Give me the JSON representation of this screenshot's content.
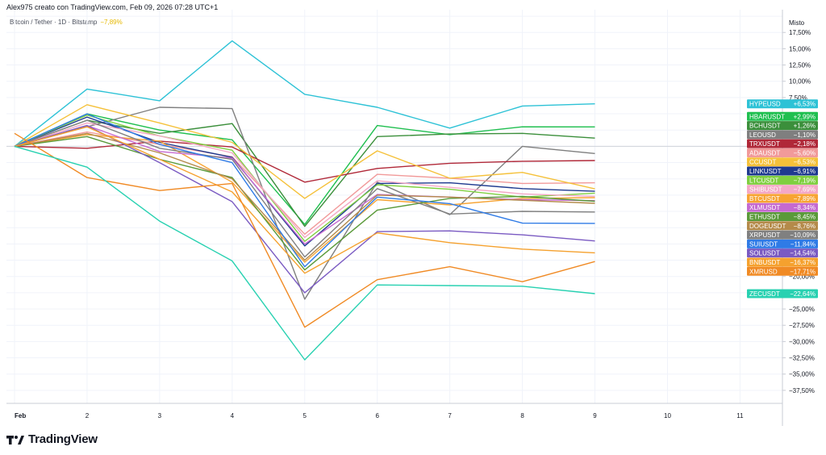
{
  "header": {
    "text": "Alex975 creato con TradingView.com, Feb 09, 2026 07:28 UTC+1"
  },
  "legend": {
    "symbol": "Bitcoin / Tether · 1D · Bitstamp",
    "change": "−7,89%"
  },
  "footer": {
    "brand": "TradingView"
  },
  "chart_data": {
    "type": "line",
    "title": "Bitcoin / Tether · 1D · Bitstamp",
    "scale_label": "Misto",
    "x": [
      1,
      2,
      3,
      4,
      5,
      6,
      7,
      8,
      9
    ],
    "xlim": [
      1,
      11.5
    ],
    "x_ticks": [
      {
        "x": 1,
        "label": "Feb"
      },
      {
        "x": 2,
        "label": "2"
      },
      {
        "x": 3,
        "label": "3"
      },
      {
        "x": 4,
        "label": "4"
      },
      {
        "x": 5,
        "label": "5"
      },
      {
        "x": 6,
        "label": "6"
      },
      {
        "x": 7,
        "label": "7"
      },
      {
        "x": 8,
        "label": "8"
      },
      {
        "x": 9,
        "label": "9"
      },
      {
        "x": 10,
        "label": "10"
      },
      {
        "x": 11,
        "label": "11"
      }
    ],
    "ylim": [
      -39.5,
      21
    ],
    "y_ticks": [
      {
        "v": 17.5,
        "label": "17,50%"
      },
      {
        "v": 15,
        "label": "15,00%"
      },
      {
        "v": 12.5,
        "label": "12,50%"
      },
      {
        "v": 10,
        "label": "10,00%"
      },
      {
        "v": 7.5,
        "label": "7,50%"
      },
      {
        "v": -20,
        "label": "−20,00%"
      },
      {
        "v": -25,
        "label": "−25,00%"
      },
      {
        "v": -27.5,
        "label": "−27,50%"
      },
      {
        "v": -30,
        "label": "−30,00%"
      },
      {
        "v": -32.5,
        "label": "−32,50%"
      },
      {
        "v": -35,
        "label": "−35,00%"
      },
      {
        "v": -37.5,
        "label": "−37,50%"
      }
    ],
    "series": [
      {
        "name": "HYPEUSD",
        "label": "+6,53%",
        "color": "#2dc2d6",
        "label_y": 6.53,
        "values": [
          0,
          8.8,
          7.0,
          16.2,
          8.0,
          6.0,
          2.8,
          6.2,
          6.53
        ]
      },
      {
        "name": "HBARUSDT",
        "label": "+2,99%",
        "color": "#1fbf4f",
        "label_y": 4.6,
        "values": [
          0,
          5.0,
          2.5,
          1.0,
          -12.0,
          3.2,
          1.8,
          3.0,
          2.99
        ]
      },
      {
        "name": "BCHUSDT",
        "label": "+1,26%",
        "color": "#3b8f3b",
        "label_y": 3.2,
        "values": [
          0,
          4.0,
          2.0,
          3.5,
          -12.3,
          1.5,
          1.9,
          2.0,
          1.26
        ]
      },
      {
        "name": "LEOUSD",
        "label": "−1,10%",
        "color": "#7f7f7f",
        "label_y": 1.8,
        "values": [
          0,
          3.0,
          6.0,
          5.8,
          -23.5,
          -5.5,
          -10.5,
          0,
          -1.1
        ]
      },
      {
        "name": "TRXUSDT",
        "label": "−2,18%",
        "color": "#b02838",
        "label_y": 0.4,
        "values": [
          0,
          -0.3,
          0.8,
          -0.1,
          -5.5,
          -3.4,
          -2.6,
          -2.3,
          -2.18
        ]
      },
      {
        "name": "ADAUSDT",
        "label": "−5,60%",
        "color": "#f19a9a",
        "label_y": -1.0,
        "values": [
          0,
          2.2,
          0.3,
          -1.6,
          -13.5,
          -4.3,
          -4.9,
          -5.7,
          -5.6
        ]
      },
      {
        "name": "CCUSDT",
        "label": "−6,53%",
        "color": "#f5c13a",
        "label_y": -2.4,
        "values": [
          0,
          6.4,
          3.6,
          0.6,
          -8.0,
          -0.7,
          -4.9,
          -4.0,
          -6.53
        ]
      },
      {
        "name": "LINKUSDT",
        "label": "−6,91%",
        "color": "#1f3a8f",
        "label_y": -3.8,
        "values": [
          0,
          4.5,
          0.6,
          -1.7,
          -15.3,
          -5.7,
          -5.6,
          -6.5,
          -6.91
        ]
      },
      {
        "name": "LTCUSDT",
        "label": "−7,19%",
        "color": "#7fcf3f",
        "label_y": -5.2,
        "values": [
          0,
          4.8,
          1.6,
          -0.6,
          -14.6,
          -5.9,
          -6.6,
          -7.8,
          -7.19
        ]
      },
      {
        "name": "SHIBUSDT",
        "label": "−7,69%",
        "color": "#f4a8c6",
        "label_y": -6.6,
        "values": [
          0,
          3.6,
          1.6,
          -1.0,
          -14.0,
          -5.3,
          -6.3,
          -7.3,
          -7.69
        ]
      },
      {
        "name": "BTCUSDT",
        "label": "−7,89%",
        "color": "#f7a433",
        "label_y": -8.0,
        "values": [
          0,
          1.8,
          0.8,
          -5.5,
          -17.8,
          -8.2,
          -9.0,
          -8.0,
          -7.89
        ]
      },
      {
        "name": "XLMUSDT",
        "label": "−8,34%",
        "color": "#c56ad1",
        "label_y": -9.4,
        "values": [
          0,
          3.2,
          -0.8,
          -1.8,
          -15.0,
          -7.4,
          -7.8,
          -8.2,
          -8.34
        ]
      },
      {
        "name": "ETHUSDT",
        "label": "−8,45%",
        "color": "#5a9a3a",
        "label_y": -10.8,
        "values": [
          0,
          1.5,
          -2.0,
          -4.8,
          -19.0,
          -9.8,
          -8.0,
          -7.7,
          -8.45
        ]
      },
      {
        "name": "DOGEUSDT",
        "label": "−8,76%",
        "color": "#b48a4a",
        "label_y": -12.2,
        "values": [
          0,
          2.0,
          -1.0,
          -5.0,
          -17.5,
          -7.5,
          -7.8,
          -8.3,
          -8.76
        ]
      },
      {
        "name": "XRPUSDT",
        "label": "−10,09%",
        "color": "#808080",
        "label_y": -13.6,
        "values": [
          0,
          4.0,
          -0.3,
          -2.0,
          -17.0,
          -6.5,
          -10.4,
          -10.0,
          -10.09
        ]
      },
      {
        "name": "SUIUSDT",
        "label": "−11,84%",
        "color": "#2f7be6",
        "label_y": -15.0,
        "values": [
          0,
          5.0,
          0.3,
          -2.5,
          -18.5,
          -7.8,
          -8.8,
          -11.8,
          -11.84
        ]
      },
      {
        "name": "SOLUSDT",
        "label": "−14,54%",
        "color": "#7a5ac2",
        "label_y": -16.4,
        "values": [
          0,
          3.2,
          -2.5,
          -8.5,
          -22.5,
          -13.1,
          -13.0,
          -13.6,
          -14.54
        ]
      },
      {
        "name": "BNBUSDT",
        "label": "−16,37%",
        "color": "#f5a12e",
        "label_y": -17.8,
        "values": [
          0,
          3.0,
          -2.0,
          -7.0,
          -19.5,
          -13.3,
          -14.8,
          -15.8,
          -16.37
        ]
      },
      {
        "name": "XMRUSD",
        "label": "−17,71%",
        "color": "#f08a24",
        "label_y": -19.2,
        "values": [
          2.0,
          -4.8,
          -6.8,
          -5.7,
          -27.8,
          -20.5,
          -18.5,
          -20.8,
          -17.71
        ]
      },
      {
        "name": "ZECUSDT",
        "label": "−22,64%",
        "color": "#28d1b1",
        "label_y": -22.64,
        "values": [
          0,
          -3.2,
          -11.5,
          -17.6,
          -32.8,
          -21.3,
          -21.4,
          -21.5,
          -22.64
        ]
      }
    ]
  }
}
